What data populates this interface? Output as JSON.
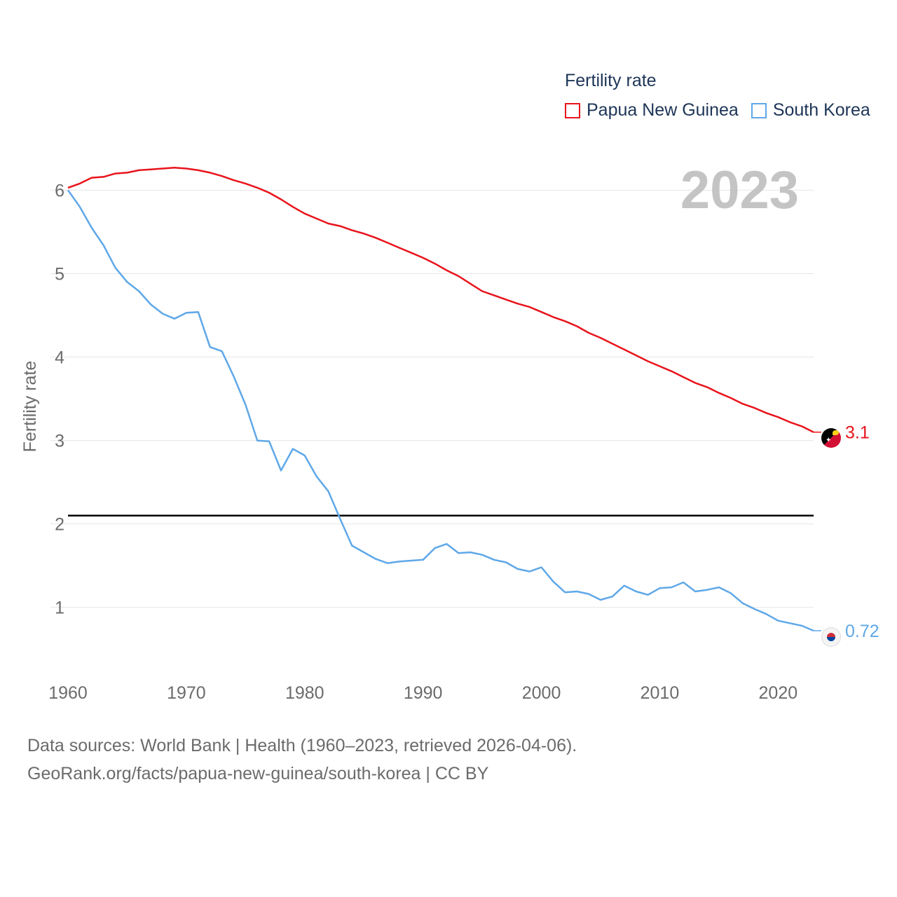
{
  "legend": {
    "title": "Fertility rate",
    "items": [
      {
        "label": "Papua New Guinea",
        "color": "#e8141c"
      },
      {
        "label": "South Korea",
        "color": "#5fa8e8"
      }
    ]
  },
  "year_label": "2023",
  "source": {
    "line1": "Data sources: World Bank | Health (1960–2023, retrieved 2026-04-06).",
    "line2": "GeoRank.org/facts/papua-new-guinea/south-korea | CC BY"
  },
  "chart_data": {
    "type": "line",
    "title": "",
    "xlabel": "",
    "ylabel": "Fertility rate",
    "xlim": [
      1960,
      2023
    ],
    "ylim": [
      0.3,
      6.6
    ],
    "xticks": [
      1960,
      1970,
      1980,
      1990,
      2000,
      2010,
      2020
    ],
    "yticks": [
      1,
      2,
      3,
      4,
      5,
      6
    ],
    "reference_line": {
      "y": 2.1,
      "color": "#000000"
    },
    "x": [
      1960,
      1961,
      1962,
      1963,
      1964,
      1965,
      1966,
      1967,
      1968,
      1969,
      1970,
      1971,
      1972,
      1973,
      1974,
      1975,
      1976,
      1977,
      1978,
      1979,
      1980,
      1981,
      1982,
      1983,
      1984,
      1985,
      1986,
      1987,
      1988,
      1989,
      1990,
      1991,
      1992,
      1993,
      1994,
      1995,
      1996,
      1997,
      1998,
      1999,
      2000,
      2001,
      2002,
      2003,
      2004,
      2005,
      2006,
      2007,
      2008,
      2009,
      2010,
      2011,
      2012,
      2013,
      2014,
      2015,
      2016,
      2017,
      2018,
      2019,
      2020,
      2021,
      2022,
      2023
    ],
    "series": [
      {
        "name": "Papua New Guinea",
        "color": "#e8141c",
        "end_label": "3.1",
        "values": [
          6.03,
          6.08,
          6.15,
          6.16,
          6.2,
          6.21,
          6.24,
          6.25,
          6.26,
          6.27,
          6.26,
          6.24,
          6.21,
          6.17,
          6.12,
          6.08,
          6.03,
          5.97,
          5.89,
          5.8,
          5.72,
          5.66,
          5.6,
          5.57,
          5.52,
          5.48,
          5.43,
          5.37,
          5.31,
          5.25,
          5.19,
          5.12,
          5.04,
          4.97,
          4.88,
          4.79,
          4.74,
          4.69,
          4.64,
          4.6,
          4.54,
          4.48,
          4.43,
          4.37,
          4.29,
          4.23,
          4.16,
          4.09,
          4.02,
          3.95,
          3.89,
          3.83,
          3.76,
          3.69,
          3.64,
          3.57,
          3.51,
          3.44,
          3.39,
          3.33,
          3.28,
          3.22,
          3.17,
          3.1
        ]
      },
      {
        "name": "South Korea",
        "color": "#5fa8e8",
        "end_label": "0.72",
        "values": [
          6.0,
          5.8,
          5.55,
          5.34,
          5.07,
          4.9,
          4.79,
          4.63,
          4.52,
          4.46,
          4.53,
          4.54,
          4.12,
          4.07,
          3.77,
          3.43,
          3.0,
          2.99,
          2.64,
          2.9,
          2.82,
          2.57,
          2.39,
          2.06,
          1.74,
          1.66,
          1.58,
          1.53,
          1.55,
          1.56,
          1.57,
          1.71,
          1.76,
          1.65,
          1.66,
          1.63,
          1.57,
          1.54,
          1.46,
          1.43,
          1.48,
          1.31,
          1.18,
          1.19,
          1.16,
          1.09,
          1.13,
          1.26,
          1.19,
          1.15,
          1.23,
          1.24,
          1.3,
          1.19,
          1.21,
          1.24,
          1.17,
          1.05,
          0.98,
          0.92,
          0.84,
          0.81,
          0.78,
          0.72
        ]
      }
    ]
  }
}
